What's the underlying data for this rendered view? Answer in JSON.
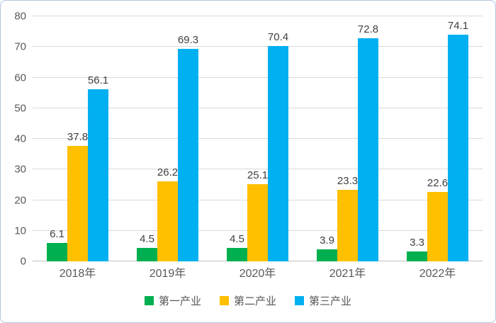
{
  "chart_data": {
    "type": "bar",
    "title": "",
    "xlabel": "",
    "ylabel": "",
    "categories": [
      "2018年",
      "2019年",
      "2020年",
      "2021年",
      "2022年"
    ],
    "series": [
      {
        "name": "第一产业",
        "color": "#00B050",
        "values": [
          6.1,
          4.5,
          4.5,
          3.9,
          3.3
        ]
      },
      {
        "name": "第二产业",
        "color": "#FFC000",
        "values": [
          37.8,
          26.2,
          25.1,
          23.3,
          22.6
        ]
      },
      {
        "name": "第三产业",
        "color": "#00B0F0",
        "values": [
          56.1,
          69.3,
          70.4,
          72.8,
          74.1
        ]
      }
    ],
    "ylim": [
      0,
      80
    ],
    "yticks": [
      0,
      10,
      20,
      30,
      40,
      50,
      60,
      70,
      80
    ],
    "grid": true,
    "data_labels": true,
    "legend_position": "bottom"
  },
  "colors": {
    "background": "#FFFFFF",
    "border": "#B4C6E0",
    "gridline": "#D9D9D9",
    "axis_line": "#BFBFBF",
    "axis_text": "#595959",
    "data_label_text": "#404040"
  }
}
